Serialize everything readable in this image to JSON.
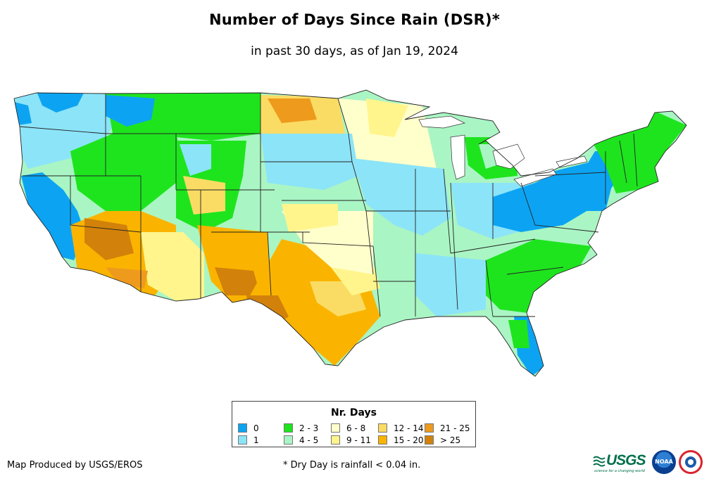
{
  "title": "Number of Days Since Rain (DSR)*",
  "subtitle": "in past 30 days, as of Jan 19, 2024",
  "legend": {
    "title": "Nr. Days",
    "items": [
      {
        "label": "0",
        "color": "#0ca4f2"
      },
      {
        "label": "1",
        "color": "#8ce4f8"
      },
      {
        "label": "2 - 3",
        "color": "#1ee41e"
      },
      {
        "label": "4 - 5",
        "color": "#aaf5c4"
      },
      {
        "label": "6 - 8",
        "color": "#ffffcc"
      },
      {
        "label": "9 - 11",
        "color": "#fff58c"
      },
      {
        "label": "12 - 14",
        "color": "#fadc64"
      },
      {
        "label": "15 - 20",
        "color": "#fab400"
      },
      {
        "label": "21 - 25",
        "color": "#ee9a1c"
      },
      {
        "label": "> 25",
        "color": "#d2820a"
      }
    ]
  },
  "footer": {
    "credit": "Map Produced by USGS/EROS",
    "note": "* Dry Day is rainfall < 0.04 in."
  },
  "logos": {
    "usgs": "USGS",
    "usgs_tagline": "science for a changing world",
    "noaa": "NOAA"
  }
}
